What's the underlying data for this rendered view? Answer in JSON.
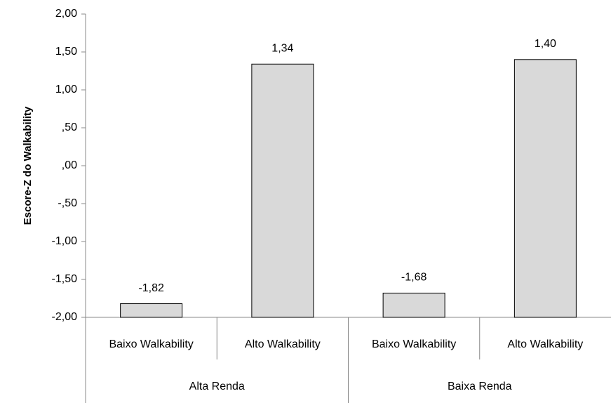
{
  "chart_data": {
    "type": "bar",
    "y_label": "Escore-Z do Walkability",
    "categories": [
      "Baixo Walkability",
      "Alto Walkability",
      "Baixo Walkability",
      "Alto Walkability"
    ],
    "groups": [
      "Alta Renda",
      "Baixa Renda"
    ],
    "values": [
      -1.82,
      1.34,
      -1.68,
      1.4
    ],
    "value_labels": [
      "-1,82",
      "1,34",
      "-1,68",
      "1,40"
    ],
    "color": "#d9d9d9",
    "ylim": [
      -2,
      2
    ],
    "yticks": [
      {
        "value": -2,
        "label": "-2,00"
      },
      {
        "value": -1.5,
        "label": "-1,50"
      },
      {
        "value": -1,
        "label": "-1,00"
      },
      {
        "value": -0.5,
        "label": "-,50"
      },
      {
        "value": 0,
        "label": ",00"
      },
      {
        "value": 0.5,
        "label": ",50"
      },
      {
        "value": 1,
        "label": "1,00"
      },
      {
        "value": 1.5,
        "label": "1,50"
      },
      {
        "value": 2,
        "label": "2,00"
      }
    ],
    "grid": false
  }
}
